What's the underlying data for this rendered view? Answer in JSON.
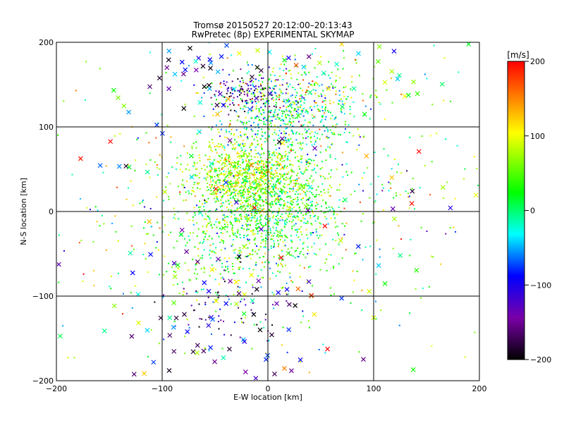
{
  "chart_data": {
    "type": "scatter",
    "title": "Tromsø 20150527 20:12:00–20:13:43",
    "subtitle": "RwPretec (8p) EXPERIMENTAL SKYMAP",
    "xlabel": "E-W location [km]",
    "ylabel": "N-S location [km]",
    "xlim": [
      -200,
      200
    ],
    "ylim": [
      -200,
      200
    ],
    "xticks": [
      "−200",
      "−100",
      "0",
      "100",
      "200"
    ],
    "yticks": [
      "−200",
      "−100",
      "0",
      "100",
      "200"
    ],
    "grid": true,
    "marker_types": [
      "dot",
      "cross"
    ],
    "colorbar": {
      "label": "[m/s]",
      "range": [
        -200,
        200
      ],
      "ticks": [
        "200",
        "100",
        "0",
        "−100",
        "−200"
      ],
      "colormap": [
        "#000000",
        "#7a00a8",
        "#0000ff",
        "#00ffff",
        "#00ff00",
        "#ffff00",
        "#ff0000"
      ]
    },
    "clusters": [
      {
        "center": [
          -20,
          40
        ],
        "spread": [
          28,
          22
        ],
        "count": 900,
        "velocity_mean": 80,
        "velocity_spread": 35,
        "marker": "dot"
      },
      {
        "center": [
          5,
          10
        ],
        "spread": [
          30,
          30
        ],
        "count": 600,
        "velocity_mean": 25,
        "velocity_spread": 35,
        "marker": "dot"
      },
      {
        "center": [
          20,
          110
        ],
        "spread": [
          30,
          25
        ],
        "count": 450,
        "velocity_mean": -10,
        "velocity_spread": 45,
        "marker": "dot"
      },
      {
        "center": [
          -20,
          140
        ],
        "spread": [
          18,
          12
        ],
        "count": 120,
        "velocity_mean": -150,
        "velocity_spread": 40,
        "marker": "dot"
      },
      {
        "center": [
          30,
          140
        ],
        "spread": [
          40,
          20
        ],
        "count": 200,
        "velocity_mean": 60,
        "velocity_spread": 60,
        "marker": "dot"
      },
      {
        "center": [
          -25,
          -30
        ],
        "spread": [
          40,
          30
        ],
        "count": 350,
        "velocity_mean": 40,
        "velocity_spread": 40,
        "marker": "dot"
      },
      {
        "center": [
          0,
          0
        ],
        "spread": [
          110,
          95
        ],
        "count": 650,
        "velocity_mean": 40,
        "velocity_spread": 70,
        "marker": "dot"
      },
      {
        "center": [
          -40,
          -120
        ],
        "spread": [
          30,
          20
        ],
        "count": 60,
        "velocity_mean": -150,
        "velocity_spread": 40,
        "marker": "dot"
      },
      {
        "center": [
          -40,
          165
        ],
        "spread": [
          40,
          25
        ],
        "count": 40,
        "velocity_mean": -120,
        "velocity_spread": 80,
        "marker": "cross"
      },
      {
        "center": [
          -40,
          -130
        ],
        "spread": [
          50,
          35
        ],
        "count": 50,
        "velocity_mean": -140,
        "velocity_spread": 60,
        "marker": "cross"
      },
      {
        "center": [
          0,
          20
        ],
        "spread": [
          110,
          110
        ],
        "count": 130,
        "velocity_mean": 30,
        "velocity_spread": 110,
        "marker": "cross"
      },
      {
        "center": [
          110,
          160
        ],
        "spread": [
          40,
          25
        ],
        "count": 25,
        "velocity_mean": 40,
        "velocity_spread": 60,
        "marker": "cross"
      }
    ]
  }
}
